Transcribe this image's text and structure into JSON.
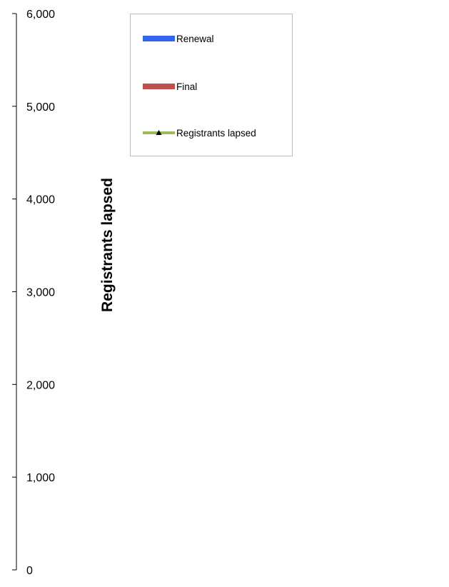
{
  "chart_data": {
    "type": "bar",
    "title": "",
    "xlabel": "",
    "ylabel": "Registrants lapsed",
    "ylim": [
      0,
      6000
    ],
    "yticks": [
      {
        "value": 0,
        "label": "0"
      },
      {
        "value": 1000,
        "label": "1,000"
      },
      {
        "value": 2000,
        "label": "2,000"
      },
      {
        "value": 3000,
        "label": "3,000"
      },
      {
        "value": 4000,
        "label": "4,000"
      },
      {
        "value": 5000,
        "label": "5,000"
      },
      {
        "value": 6000,
        "label": "6,000"
      }
    ],
    "categories": [],
    "series": [
      {
        "name": "Renewal",
        "kind": "bar",
        "color": "#3366ee",
        "values": []
      },
      {
        "name": "Final",
        "kind": "bar",
        "color": "#c0504d",
        "values": []
      },
      {
        "name": "Registrants lapsed",
        "kind": "line",
        "color": "#9bbb59",
        "marker": "triangle",
        "values": []
      }
    ],
    "grid": false,
    "legend_position": "top"
  }
}
